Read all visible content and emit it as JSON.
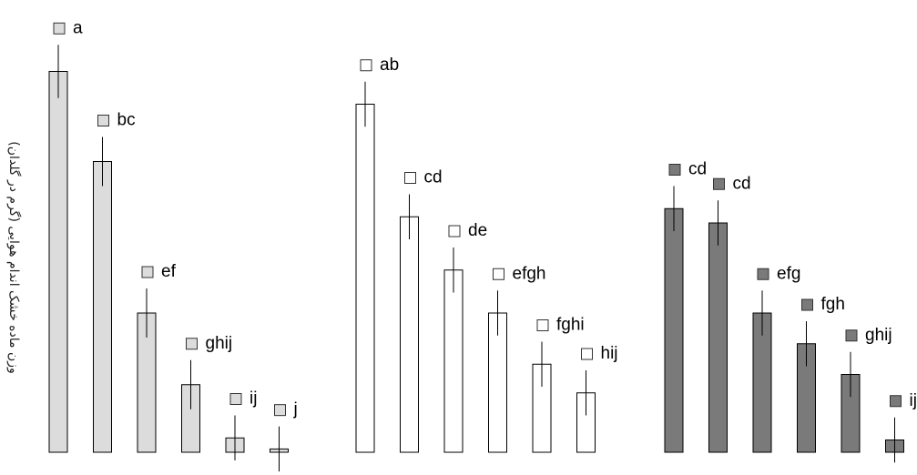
{
  "chart_data": {
    "type": "bar",
    "ylabel": "وزن ماده خشک اندام هوایی (گرم در گلدان)",
    "ylim": [
      0,
      100
    ],
    "colors": {
      "light": "#dcdcdc",
      "white": "#ffffff",
      "dark": "#7a7a7a",
      "stroke": "#000000"
    },
    "groups": [
      {
        "fill": "light",
        "bars": [
          {
            "value": 93.0,
            "err": 6.5,
            "letter": "a"
          },
          {
            "value": 71.0,
            "err": 6.0,
            "letter": "bc"
          },
          {
            "value": 34.0,
            "err": 6.0,
            "letter": "ef"
          },
          {
            "value": 16.5,
            "err": 6.0,
            "letter": "ghij"
          },
          {
            "value": 3.5,
            "err": 5.5,
            "letter": "ij"
          },
          {
            "value": 0.8,
            "err": 5.5,
            "letter": "j"
          }
        ]
      },
      {
        "fill": "white",
        "bars": [
          {
            "value": 85.0,
            "err": 5.5,
            "letter": "ab"
          },
          {
            "value": 57.5,
            "err": 5.5,
            "letter": "cd"
          },
          {
            "value": 44.5,
            "err": 5.5,
            "letter": "de"
          },
          {
            "value": 34.0,
            "err": 5.5,
            "letter": "efgh"
          },
          {
            "value": 21.5,
            "err": 5.5,
            "letter": "fghi"
          },
          {
            "value": 14.5,
            "err": 5.5,
            "letter": "hij"
          }
        ]
      },
      {
        "fill": "dark",
        "bars": [
          {
            "value": 59.5,
            "err": 5.5,
            "letter": "cd"
          },
          {
            "value": 56.0,
            "err": 5.5,
            "letter": "cd"
          },
          {
            "value": 34.0,
            "err": 5.5,
            "letter": "efg"
          },
          {
            "value": 26.5,
            "err": 5.5,
            "letter": "fgh"
          },
          {
            "value": 19.0,
            "err": 5.5,
            "letter": "ghij"
          },
          {
            "value": 3.0,
            "err": 5.5,
            "letter": "ij"
          }
        ]
      }
    ]
  }
}
